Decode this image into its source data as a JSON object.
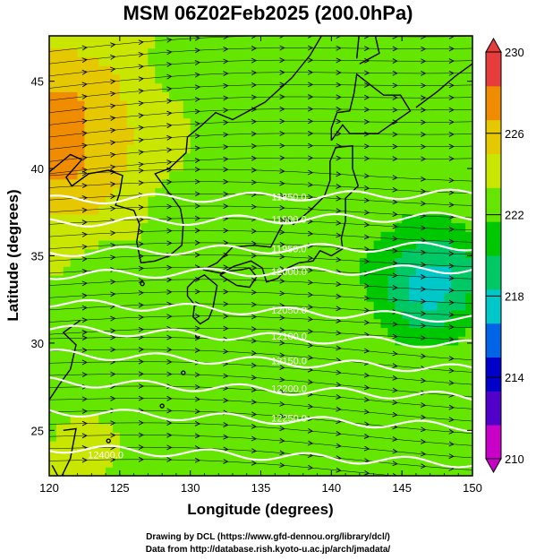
{
  "title": "MSM 06Z02Feb2025 (200.0hPa)",
  "credits": {
    "line1": "Drawing by DCL (https://www.gfd-dennou.org/library/dcl/)",
    "line2": "Data from http://database.rish.kyoto-u.ac.jp/arch/jmadata/"
  },
  "chart_data": {
    "type": "heatmap",
    "title": "MSM 06Z02Feb2025 (200.0hPa)",
    "xlabel": "Longitude (degrees)",
    "ylabel": "Latitude  (degrees)",
    "xlim": [
      120,
      150
    ],
    "ylim": [
      22.4,
      47.6
    ],
    "x_ticks": [
      "120",
      "125",
      "130",
      "135",
      "140",
      "145",
      "150"
    ],
    "y_ticks": [
      "25",
      "30",
      "35",
      "40",
      "45"
    ],
    "colorbar": {
      "min": 210,
      "max": 230,
      "ticks": [
        "210",
        "214",
        "218",
        "222",
        "226",
        "230"
      ],
      "colors": [
        "#c800c8",
        "#5000c8",
        "#0000c8",
        "#0064e6",
        "#00c8c8",
        "#00c864",
        "#00c800",
        "#64e600",
        "#c8e600",
        "#e6c800",
        "#f08c00",
        "#e63c3c"
      ]
    },
    "temperature_field": {
      "mean": 222.8,
      "warm_core": {
        "lon": 120,
        "lat": 42,
        "value": 227
      },
      "cold_core": {
        "lon": 147,
        "lat": 33.5,
        "value": 217.5
      },
      "warm_southwest": {
        "lon": 121,
        "lat": 23,
        "value": 223.5
      }
    },
    "wind_streamlines": {
      "direction": "westerly",
      "arrows": true
    },
    "height_contours": [
      {
        "label": "11850.0",
        "lat": 38.2
      },
      {
        "label": "11900.0",
        "lat": 36.9
      },
      {
        "label": "11950.0",
        "lat": 35.2
      },
      {
        "label": "12000.0",
        "lat": 33.9
      },
      {
        "label": "12050.0",
        "lat": 32.3
      },
      {
        "label": "12100.0",
        "lat": 30.8
      },
      {
        "label": "12150.0",
        "lat": 29.4
      },
      {
        "label": "12200.0",
        "lat": 27.8
      },
      {
        "label": "12250.0",
        "lat": 26.1
      },
      {
        "label": "12400.0",
        "lat": 24.0
      }
    ]
  }
}
